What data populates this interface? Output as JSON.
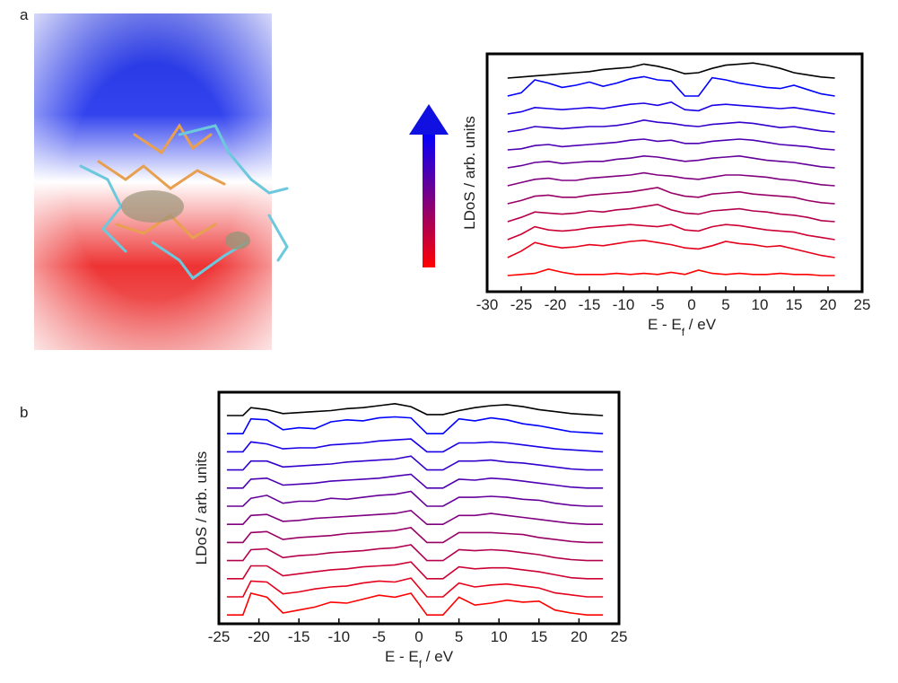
{
  "chart_data": [
    {
      "type": "line",
      "panel_label": "a",
      "y_label": "LDoS / arb. units",
      "x_label": {
        "main": "E - E",
        "sub": "f",
        "rest": " / eV"
      },
      "xlim": [
        -30,
        25
      ],
      "xticks": [
        -30,
        -25,
        -20,
        -15,
        -10,
        -5,
        0,
        5,
        10,
        15,
        20,
        25
      ],
      "x": [
        -27,
        -25,
        -23,
        -21,
        -19,
        -17,
        -15,
        -13,
        -11,
        -9,
        -7,
        -5,
        -3,
        -1,
        1,
        3,
        5,
        7,
        9,
        11,
        13,
        15,
        17,
        19,
        21
      ],
      "series": [
        {
          "color": "#000000",
          "values": [
            0,
            0.1,
            0.2,
            0.3,
            0.4,
            0.5,
            0.6,
            0.8,
            0.9,
            1.0,
            1.3,
            1.1,
            0.8,
            0.4,
            0.5,
            0.9,
            1.2,
            1.3,
            1.4,
            1.2,
            0.9,
            0.5,
            0.3,
            0.1,
            0
          ]
        },
        {
          "color": "#0000ff",
          "values": [
            0,
            0.3,
            1.5,
            1.2,
            0.8,
            1.0,
            1.3,
            0.9,
            1.2,
            1.6,
            1.8,
            1.5,
            1.4,
            0,
            0,
            1.7,
            1.5,
            1.2,
            1.0,
            0.8,
            0.7,
            1.0,
            0.6,
            0.2,
            0
          ]
        },
        {
          "color": "#1a00e6",
          "values": [
            0,
            0.2,
            0.6,
            0.5,
            0.4,
            0.5,
            0.6,
            0.5,
            0.7,
            0.9,
            1.0,
            0.8,
            1.1,
            0.4,
            0.3,
            0.8,
            0.9,
            0.8,
            0.7,
            0.6,
            0.5,
            0.6,
            0.4,
            0.2,
            0
          ]
        },
        {
          "color": "#3300cc",
          "values": [
            0,
            0.2,
            0.5,
            0.4,
            0.3,
            0.4,
            0.5,
            0.5,
            0.6,
            0.8,
            1.1,
            0.9,
            0.8,
            0.6,
            0.5,
            0.7,
            0.8,
            0.9,
            0.8,
            0.6,
            0.4,
            0.5,
            0.3,
            0.1,
            0
          ]
        },
        {
          "color": "#4d00b3",
          "values": [
            0,
            0.1,
            0.4,
            0.5,
            0.3,
            0.4,
            0.5,
            0.6,
            0.7,
            0.9,
            1.0,
            0.8,
            0.9,
            0.6,
            0.6,
            0.8,
            0.9,
            1.0,
            0.9,
            0.7,
            0.5,
            0.4,
            0.3,
            0.1,
            0
          ]
        },
        {
          "color": "#660099",
          "values": [
            0,
            0.2,
            0.5,
            0.6,
            0.4,
            0.5,
            0.6,
            0.6,
            0.8,
            0.9,
            1.1,
            1.0,
            0.8,
            0.6,
            0.7,
            0.9,
            1.0,
            1.1,
            0.9,
            0.7,
            0.6,
            0.5,
            0.3,
            0.1,
            0
          ]
        },
        {
          "color": "#800080",
          "values": [
            0,
            0.3,
            0.6,
            0.7,
            0.5,
            0.5,
            0.7,
            0.8,
            0.9,
            1.0,
            1.2,
            1.0,
            0.9,
            0.7,
            0.6,
            0.8,
            1.0,
            1.0,
            0.9,
            0.8,
            0.6,
            0.5,
            0.3,
            0.1,
            0
          ]
        },
        {
          "color": "#990066",
          "values": [
            0,
            0.3,
            0.7,
            0.8,
            0.6,
            0.6,
            0.8,
            0.9,
            1.0,
            1.1,
            1.3,
            1.5,
            1.0,
            0.7,
            0.6,
            0.9,
            1.0,
            1.1,
            0.9,
            0.8,
            0.7,
            0.6,
            0.3,
            0.1,
            0
          ]
        },
        {
          "color": "#b3004d",
          "values": [
            0,
            0.4,
            0.9,
            0.8,
            0.7,
            0.8,
            1.0,
            0.9,
            1.1,
            1.2,
            1.4,
            1.6,
            1.1,
            0.8,
            0.7,
            1.0,
            1.1,
            1.2,
            1.0,
            0.9,
            0.7,
            0.6,
            0.4,
            0.1,
            0
          ]
        },
        {
          "color": "#cc0033",
          "values": [
            0,
            0.5,
            1.2,
            0.9,
            0.8,
            0.9,
            1.1,
            1.2,
            1.3,
            1.4,
            1.3,
            1.2,
            1.4,
            0.9,
            0.8,
            1.2,
            1.4,
            1.3,
            1.1,
            0.9,
            0.8,
            0.7,
            0.4,
            0.2,
            0
          ]
        },
        {
          "color": "#e6001a",
          "values": [
            0,
            0.6,
            1.4,
            1.1,
            0.9,
            1.0,
            1.2,
            1.1,
            1.3,
            1.5,
            1.6,
            1.4,
            1.2,
            0.9,
            0.8,
            1.1,
            1.5,
            1.3,
            1.2,
            1.0,
            1.1,
            0.8,
            0.5,
            0.2,
            0
          ]
        },
        {
          "color": "#ff0000",
          "values": [
            0,
            0.1,
            0.2,
            0.6,
            0.3,
            0.1,
            0.1,
            0.1,
            0.2,
            0.1,
            0.2,
            0.1,
            0.3,
            0.1,
            0.5,
            0.2,
            0.1,
            0.2,
            0.1,
            0.1,
            0.2,
            0.1,
            0.1,
            0,
            0
          ]
        }
      ]
    },
    {
      "type": "line",
      "panel_label": "b",
      "y_label": "LDoS / arb. units",
      "x_label": {
        "main": "E - E",
        "sub": "f",
        "rest": " / eV"
      },
      "xlim": [
        -25,
        25
      ],
      "xticks": [
        -25,
        -20,
        -15,
        -10,
        -5,
        0,
        5,
        10,
        15,
        20,
        25
      ],
      "x": [
        -24,
        -22,
        -21,
        -19,
        -17,
        -15,
        -13,
        -11,
        -9,
        -7,
        -5,
        -3,
        -1,
        1,
        3,
        5,
        7,
        9,
        11,
        13,
        15,
        17,
        19,
        21,
        23
      ],
      "series": [
        {
          "color": "#000000",
          "values": [
            0,
            0,
            0.8,
            0.6,
            0.2,
            0.3,
            0.4,
            0.5,
            0.7,
            0.8,
            1.0,
            1.2,
            0.9,
            0.1,
            0.1,
            0.5,
            0.8,
            1.0,
            1.1,
            0.9,
            0.6,
            0.4,
            0.2,
            0.1,
            0
          ]
        },
        {
          "color": "#0000ff",
          "values": [
            0,
            0,
            1.5,
            1.4,
            0.4,
            0.6,
            0.5,
            1.2,
            1.4,
            1.3,
            1.6,
            1.7,
            1.6,
            0,
            0,
            1.5,
            1.3,
            1.6,
            1.4,
            1.0,
            0.8,
            0.5,
            0.2,
            0.1,
            0
          ]
        },
        {
          "color": "#1a00e6",
          "values": [
            0,
            0,
            1.0,
            0.8,
            0.3,
            0.4,
            0.4,
            0.7,
            0.8,
            0.9,
            1.1,
            1.2,
            1.3,
            0,
            0,
            0.9,
            0.9,
            1.0,
            0.9,
            0.7,
            0.5,
            0.3,
            0.2,
            0.1,
            0
          ]
        },
        {
          "color": "#3300cc",
          "values": [
            0,
            0,
            0.9,
            0.9,
            0.3,
            0.4,
            0.5,
            0.6,
            0.8,
            0.9,
            1.0,
            1.1,
            1.4,
            0,
            0,
            0.9,
            0.9,
            1.0,
            0.8,
            0.7,
            0.5,
            0.3,
            0.1,
            0,
            0
          ]
        },
        {
          "color": "#4d00b3",
          "values": [
            0,
            0,
            0.9,
            1.0,
            0.3,
            0.4,
            0.5,
            0.7,
            0.8,
            0.9,
            1.0,
            1.2,
            1.4,
            0,
            0,
            0.9,
            0.8,
            1.0,
            0.9,
            0.7,
            0.5,
            0.3,
            0.1,
            0,
            0
          ]
        },
        {
          "color": "#660099",
          "values": [
            0,
            0,
            0.8,
            1.1,
            0.3,
            0.5,
            0.5,
            0.8,
            0.7,
            0.9,
            1.1,
            1.2,
            1.5,
            0,
            0,
            0.9,
            0.9,
            1.0,
            0.9,
            0.7,
            0.6,
            0.3,
            0.1,
            0,
            0
          ]
        },
        {
          "color": "#800080",
          "values": [
            0,
            0,
            0.9,
            1.0,
            0.3,
            0.4,
            0.6,
            0.7,
            0.8,
            0.9,
            1.0,
            1.1,
            1.4,
            0,
            0,
            0.9,
            0.9,
            1.1,
            0.9,
            0.7,
            0.5,
            0.3,
            0.1,
            0,
            0
          ]
        },
        {
          "color": "#990066",
          "values": [
            0,
            0,
            1.0,
            1.1,
            0.3,
            0.5,
            0.6,
            0.7,
            0.9,
            1.0,
            1.1,
            1.2,
            1.5,
            0,
            0,
            1.0,
            1.0,
            1.0,
            0.9,
            0.8,
            0.5,
            0.3,
            0.1,
            0,
            0
          ]
        },
        {
          "color": "#b3004d",
          "values": [
            0,
            0,
            1.1,
            1.2,
            0.3,
            0.5,
            0.6,
            0.8,
            0.9,
            1.0,
            1.2,
            1.3,
            1.6,
            0,
            0,
            1.1,
            1.0,
            1.1,
            1.0,
            0.8,
            0.6,
            0.3,
            0.1,
            0,
            0
          ]
        },
        {
          "color": "#cc0033",
          "values": [
            0,
            0,
            1.3,
            1.3,
            0.3,
            0.5,
            0.7,
            0.9,
            1.0,
            1.2,
            1.3,
            1.4,
            1.7,
            0,
            0,
            1.2,
            1.0,
            1.1,
            1.1,
            0.9,
            0.7,
            0.4,
            0.1,
            0,
            0
          ]
        },
        {
          "color": "#e6001a",
          "values": [
            0,
            0,
            1.6,
            1.5,
            0.3,
            0.5,
            0.8,
            1.0,
            1.1,
            1.4,
            1.6,
            1.5,
            1.9,
            0,
            0,
            1.4,
            1.0,
            1.2,
            1.3,
            1.1,
            0.9,
            0.4,
            0.2,
            0,
            0
          ]
        },
        {
          "color": "#ff0000",
          "values": [
            0,
            0,
            2.2,
            1.8,
            0.2,
            0.5,
            0.8,
            1.3,
            1.2,
            1.6,
            2.0,
            1.8,
            2.2,
            0,
            0,
            1.8,
            1.0,
            1.2,
            1.5,
            1.3,
            1.4,
            0.5,
            0.2,
            0,
            0
          ]
        }
      ]
    }
  ]
}
